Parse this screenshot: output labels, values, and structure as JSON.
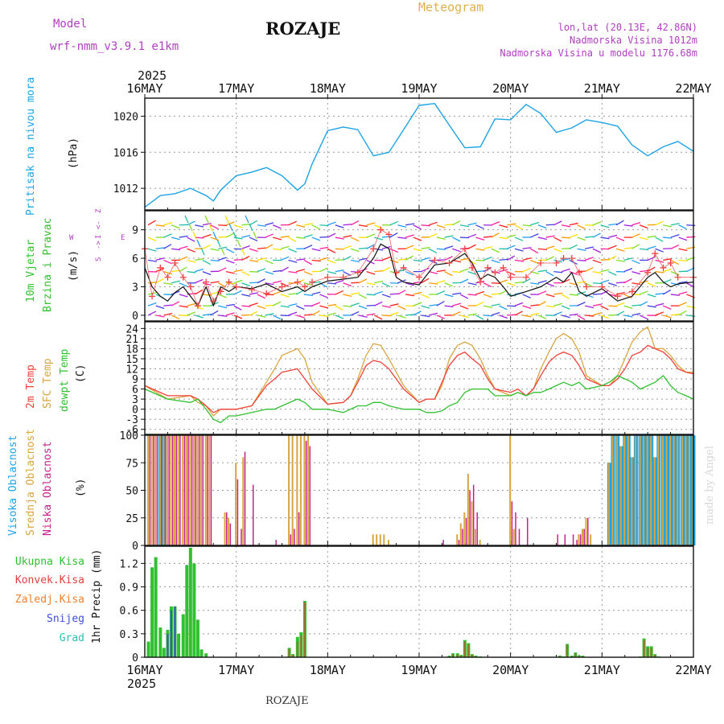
{
  "header": {
    "model_label": "Model",
    "model_name": "wrf-nmm_v3.9.1 e1km",
    "location_title": "ROZAJE",
    "product": "Meteogram",
    "coords": "lon,lat (20.13E, 42.86N)",
    "altitude": "Nadmorska Visina 1012m",
    "model_altitude": "Nadmorska Visina u modelu 1176.68m"
  },
  "footer": {
    "location": "ROZAJE",
    "credit": "made by Angel"
  },
  "time_axis": {
    "year": "2025",
    "labels": [
      "16MAY",
      "17MAY",
      "18MAY",
      "19MAY",
      "20MAY",
      "21MAY",
      "22MAY"
    ]
  },
  "colors": {
    "pressure": "#1ea4e6",
    "temp2m": "#f0403a",
    "sfc_temp": "#d8a640",
    "dewpt": "#30c030",
    "wind_label": "#30c030",
    "wind_axis": "#b040c0",
    "cloud_high": "#1ea4e6",
    "cloud_mid": "#d8a640",
    "cloud_low": "#c8208a",
    "precip_total": "#30c030",
    "precip_conv": "#e04040",
    "precip_frozen": "#f08030",
    "precip_snow": "#4050d8",
    "precip_hail": "#30c0b0"
  },
  "chart_data": [
    {
      "type": "line",
      "panel": "pressure",
      "ylabel": [
        "Pritisak na nivou mora",
        "(hPa)"
      ],
      "yticks": [
        1012,
        1016,
        1020
      ],
      "ylim": [
        1009.6,
        1022
      ],
      "x_days": [
        0,
        0.17,
        0.33,
        0.5,
        0.67,
        0.75,
        0.83,
        1.0,
        1.17,
        1.33,
        1.5,
        1.67,
        1.75,
        1.83,
        2.0,
        2.17,
        2.33,
        2.5,
        2.67,
        2.83,
        3.0,
        3.17,
        3.33,
        3.5,
        3.67,
        3.83,
        4.0,
        4.17,
        4.33,
        4.5,
        4.67,
        4.83,
        5.0,
        5.17,
        5.33,
        5.5,
        5.67,
        5.83,
        6.0
      ],
      "series": [
        {
          "values": [
            1009.9,
            1011.2,
            1011.4,
            1012.0,
            1011.2,
            1010.6,
            1011.8,
            1013.4,
            1013.8,
            1014.3,
            1013.4,
            1011.8,
            1012.5,
            1014.7,
            1018.4,
            1018.8,
            1018.5,
            1015.6,
            1016.0,
            1018.5,
            1021.2,
            1021.4,
            1019.0,
            1016.5,
            1016.6,
            1019.7,
            1019.6,
            1021.3,
            1020.3,
            1018.2,
            1018.7,
            1019.6,
            1019.3,
            1018.9,
            1016.8,
            1015.6,
            1016.6,
            1017.2,
            1016.1
          ]
        }
      ]
    },
    {
      "type": "line",
      "panel": "wind",
      "ylabel": [
        "10m Vjetar",
        "Brzina i Pravac",
        "(m/s)"
      ],
      "direction_key": [
        "Z",
        "<-",
        "I",
        "->",
        "E",
        "W",
        "S"
      ],
      "yticks": [
        0,
        3,
        6,
        9
      ],
      "ylim": [
        -0.6,
        11
      ],
      "x_days": [
        0,
        0.08,
        0.17,
        0.25,
        0.33,
        0.42,
        0.5,
        0.58,
        0.67,
        0.75,
        0.83,
        0.92,
        1.0,
        1.17,
        1.33,
        1.5,
        1.67,
        1.75,
        1.83,
        2.0,
        2.17,
        2.33,
        2.5,
        2.58,
        2.67,
        2.75,
        2.83,
        3.0,
        3.17,
        3.33,
        3.5,
        3.58,
        3.67,
        3.75,
        3.83,
        3.92,
        4.0,
        4.17,
        4.33,
        4.5,
        4.58,
        4.67,
        4.75,
        4.83,
        5.0,
        5.17,
        5.33,
        5.5,
        5.58,
        5.67,
        5.75,
        5.83,
        6.0
      ],
      "series": [
        {
          "values": [
            5.0,
            3.0,
            2.0,
            1.5,
            2.4,
            3.0,
            2.0,
            1.0,
            3.0,
            1.0,
            3.0,
            2.5,
            3.0,
            2.8,
            3.3,
            2.5,
            3.0,
            2.5,
            3.0,
            3.6,
            3.8,
            4.0,
            6.0,
            7.5,
            7.0,
            4.0,
            3.5,
            3.2,
            5.3,
            5.5,
            6.5,
            5.5,
            3.8,
            4.3,
            4.0,
            3.0,
            2.0,
            2.5,
            3.0,
            4.0,
            3.5,
            4.5,
            2.5,
            2.0,
            2.8,
            1.5,
            2.0,
            4.0,
            4.5,
            3.5,
            3.0,
            3.3,
            3.5
          ]
        },
        {
          "values": [
            7.0,
            2.0,
            5.0,
            4.0,
            5.5,
            4.0,
            3.0,
            1.0,
            3.5,
            1.5,
            2.5,
            3.5,
            3.0,
            2.7,
            2.3,
            3.0,
            3.5,
            3.0,
            3.5,
            4.0,
            4.0,
            4.5,
            7.0,
            9.0,
            8.5,
            4.5,
            5.0,
            4.0,
            5.8,
            5.5,
            7.0,
            5.0,
            3.5,
            5.0,
            4.5,
            5.0,
            4.0,
            4.0,
            5.5,
            5.5,
            6.0,
            6.0,
            4.5,
            3.0,
            3.0,
            2.0,
            2.5,
            4.5,
            6.5,
            5.0,
            5.5,
            4.0,
            4.0
          ]
        }
      ]
    },
    {
      "type": "line",
      "panel": "temperature",
      "ylabel": [
        "2m Temp",
        "SFC Temp",
        "dewpt Temp",
        "(C)"
      ],
      "yticks": [
        -6,
        -3,
        0,
        3,
        6,
        9,
        12,
        15,
        18,
        21,
        24
      ],
      "ylim": [
        -7.5,
        26
      ],
      "x_days": [
        0,
        0.25,
        0.5,
        0.58,
        0.67,
        0.75,
        0.83,
        0.92,
        1.0,
        1.17,
        1.33,
        1.42,
        1.5,
        1.67,
        1.75,
        1.83,
        2.0,
        2.17,
        2.25,
        2.33,
        2.42,
        2.5,
        2.58,
        2.67,
        2.83,
        3.0,
        3.08,
        3.17,
        3.25,
        3.33,
        3.42,
        3.5,
        3.58,
        3.67,
        3.75,
        3.83,
        4.0,
        4.08,
        4.17,
        4.25,
        4.33,
        4.42,
        4.5,
        4.58,
        4.67,
        4.75,
        4.83,
        5.0,
        5.08,
        5.17,
        5.25,
        5.33,
        5.42,
        5.5,
        5.58,
        5.67,
        5.75,
        5.83,
        5.92,
        6.0
      ],
      "series": [
        {
          "name": "2m Temp",
          "values": [
            7,
            4,
            4,
            3,
            1,
            -1,
            0,
            0,
            0,
            1,
            7,
            9,
            11,
            12,
            9,
            6,
            1.5,
            2,
            4,
            8,
            13,
            14.5,
            14,
            12,
            6,
            2,
            3,
            3,
            8,
            13,
            16,
            17,
            15,
            13,
            9,
            6,
            5,
            6,
            4,
            6,
            10,
            14,
            16,
            17,
            16,
            13,
            9,
            7,
            7,
            9,
            12,
            16,
            17,
            19,
            18,
            17,
            15,
            12,
            11,
            10.5
          ]
        },
        {
          "name": "SFC Temp",
          "values": [
            7,
            3,
            4,
            2,
            1,
            -2,
            0,
            0,
            0,
            1,
            8,
            12,
            16,
            18,
            15,
            8,
            1.5,
            2,
            4,
            9,
            16,
            19.5,
            19,
            15,
            7,
            2,
            3,
            3,
            7,
            15,
            19,
            20,
            19,
            15,
            10,
            6,
            4,
            5,
            4,
            6,
            12,
            17,
            21,
            22.5,
            21,
            17,
            10,
            7,
            7,
            10,
            15,
            20,
            23,
            24.5,
            18,
            18,
            16,
            13,
            11,
            11
          ]
        },
        {
          "name": "dewpt Temp",
          "values": [
            6,
            3,
            2,
            3,
            0,
            -3,
            -4,
            -2,
            -2,
            -1,
            0,
            0,
            1,
            3,
            2,
            0,
            0,
            -1,
            0,
            1,
            1,
            2,
            2,
            1,
            0,
            0,
            -1,
            -1,
            -0.5,
            1,
            2,
            5,
            6,
            6,
            6,
            4,
            4,
            5,
            4,
            5,
            5,
            6,
            7,
            8,
            7,
            8,
            6,
            7,
            8,
            10,
            9,
            8,
            6,
            7,
            8,
            10,
            7,
            5,
            4,
            3
          ]
        }
      ]
    },
    {
      "type": "bar",
      "panel": "clouds",
      "ylabel": [
        "Visoka Oblacnost",
        "Srednja Oblacnost",
        "Niska Oblacnost",
        "(%)"
      ],
      "yticks": [
        0,
        25,
        50,
        75,
        100
      ],
      "ylim": [
        0,
        100
      ],
      "x_days": [
        0.04,
        0.08,
        0.12,
        0.17,
        0.21,
        0.25,
        0.29,
        0.33,
        0.37,
        0.42,
        0.46,
        0.5,
        0.54,
        0.58,
        0.62,
        0.67,
        0.71,
        0.75,
        0.83,
        0.88,
        0.92,
        1.0,
        1.04,
        1.08,
        1.12,
        1.17,
        1.25,
        1.42,
        1.54,
        1.58,
        1.62,
        1.67,
        1.71,
        1.75,
        1.79,
        1.83,
        1.88,
        1.92,
        2.0,
        2.5,
        2.54,
        2.58,
        2.62,
        2.67,
        3.21,
        3.25,
        3.33,
        3.42,
        3.46,
        3.5,
        3.54,
        3.58,
        3.62,
        3.67,
        3.75,
        3.96,
        4.0,
        4.04,
        4.08,
        4.12,
        4.17,
        4.33,
        4.5,
        4.58,
        4.67,
        4.71,
        4.75,
        4.79,
        4.83,
        4.88,
        5.0,
        5.08,
        5.12,
        5.17,
        5.21,
        5.25,
        5.29,
        5.33,
        5.37,
        5.42,
        5.46,
        5.5,
        5.54,
        5.58,
        5.62,
        5.67,
        5.71,
        5.75,
        5.79,
        5.83,
        5.88,
        5.92,
        5.96,
        6.0
      ],
      "series": [
        {
          "name": "Visoka Oblacnost",
          "values": [
            0,
            0,
            0,
            100,
            100,
            0,
            0,
            0,
            0,
            0,
            0,
            0,
            0,
            0,
            0,
            0,
            0,
            0,
            0,
            0,
            0,
            0,
            0,
            0,
            0,
            0,
            0,
            0,
            0,
            0,
            0,
            0,
            0,
            0,
            0,
            0,
            0,
            0,
            0,
            0,
            0,
            0,
            0,
            0,
            0,
            0,
            0,
            0,
            0,
            0,
            0,
            0,
            0,
            0,
            0,
            0,
            0,
            0,
            0,
            0,
            0,
            0,
            0,
            0,
            0,
            0,
            0,
            0,
            0,
            0,
            0,
            75,
            100,
            100,
            90,
            100,
            100,
            80,
            100,
            100,
            100,
            100,
            100,
            80,
            100,
            100,
            100,
            100,
            100,
            100,
            100,
            100,
            100,
            100
          ]
        },
        {
          "name": "Srednja Oblacnost",
          "values": [
            100,
            100,
            100,
            100,
            100,
            100,
            100,
            100,
            100,
            100,
            100,
            100,
            100,
            100,
            100,
            100,
            100,
            0,
            0,
            30,
            25,
            75,
            0,
            80,
            0,
            0,
            0,
            0,
            0,
            100,
            100,
            100,
            100,
            100,
            100,
            0,
            0,
            0,
            0,
            10,
            10,
            10,
            10,
            5,
            0,
            0,
            0,
            10,
            20,
            30,
            65,
            40,
            15,
            5,
            0,
            0,
            100,
            15,
            0,
            0,
            0,
            0,
            0,
            0,
            0,
            0,
            10,
            15,
            25,
            10,
            0,
            75,
            100,
            100,
            90,
            100,
            100,
            80,
            100,
            100,
            100,
            100,
            100,
            80,
            100,
            100,
            100,
            100,
            100,
            100,
            100,
            100,
            100,
            100
          ]
        },
        {
          "name": "Niska Oblacnost",
          "values": [
            100,
            100,
            100,
            100,
            100,
            100,
            100,
            100,
            100,
            100,
            100,
            100,
            100,
            100,
            100,
            100,
            100,
            0,
            0,
            30,
            20,
            60,
            15,
            85,
            0,
            55,
            0,
            5,
            0,
            10,
            15,
            30,
            0,
            95,
            90,
            0,
            0,
            0,
            0,
            0,
            0,
            0,
            0,
            0,
            0,
            5,
            0,
            5,
            15,
            25,
            50,
            55,
            30,
            0,
            0,
            0,
            40,
            30,
            15,
            0,
            25,
            0,
            10,
            10,
            10,
            5,
            10,
            15,
            25,
            0,
            0,
            0,
            0,
            0,
            0,
            0,
            0,
            0,
            0,
            0,
            0,
            0,
            0,
            0,
            0,
            0,
            0,
            0,
            0,
            0,
            0,
            0,
            0,
            0
          ]
        }
      ]
    },
    {
      "type": "bar",
      "panel": "precipitation",
      "ylabel": [
        "1hr Precip (mm)"
      ],
      "legend": [
        "Ukupna Kisa",
        "Konvek.Kisa",
        "Zaledj.Kisa",
        "Snijeg",
        "Grad"
      ],
      "yticks": [
        0,
        0.3,
        0.6,
        0.9,
        1.2
      ],
      "ylim": [
        0,
        1.42
      ],
      "x_days": [
        0.04,
        0.08,
        0.12,
        0.17,
        0.21,
        0.25,
        0.29,
        0.33,
        0.37,
        0.42,
        0.46,
        0.5,
        0.54,
        0.58,
        0.62,
        0.67,
        1.58,
        1.62,
        1.67,
        1.71,
        1.75,
        3.33,
        3.37,
        3.42,
        3.46,
        3.5,
        3.54,
        3.58,
        3.62,
        3.67,
        4.54,
        4.58,
        4.62,
        4.67,
        4.71,
        4.75,
        4.79,
        5.42,
        5.46,
        5.5,
        5.54,
        5.58,
        5.62,
        5.67
      ],
      "series": [
        {
          "name": "Ukupna Kisa",
          "values": [
            0.2,
            1.15,
            1.28,
            0.38,
            0.12,
            0.35,
            0.65,
            0.65,
            0.3,
            0.55,
            1.18,
            1.4,
            1.2,
            0.48,
            0.1,
            0.05,
            0.12,
            0.04,
            0.26,
            0.32,
            0.72,
            0.02,
            0.05,
            0.05,
            0.03,
            0.22,
            0.18,
            0.04,
            0.02,
            0.01,
            0.02,
            0.01,
            0.17,
            0.02,
            0.06,
            0.02,
            0.02,
            0.01,
            0.24,
            0.14,
            0.14,
            0.04,
            0.01,
            0.0
          ]
        },
        {
          "name": "Konvek.Kisa",
          "values": [
            0,
            0,
            0,
            0,
            0,
            0,
            0,
            0,
            0,
            0,
            0,
            0,
            0,
            0,
            0,
            0,
            0.1,
            0.03,
            0.2,
            0.28,
            0.7,
            0.01,
            0.04,
            0.04,
            0.02,
            0.2,
            0.16,
            0.03,
            0.01,
            0,
            0.01,
            0,
            0.16,
            0.01,
            0.05,
            0.01,
            0.01,
            0,
            0.22,
            0.12,
            0.12,
            0.03,
            0,
            0
          ]
        },
        {
          "name": "Snijeg",
          "values": [
            0,
            0,
            0,
            0,
            0,
            0.3,
            0.6,
            0.65,
            0,
            0,
            0,
            0,
            0,
            0,
            0,
            0,
            0,
            0,
            0,
            0,
            0,
            0,
            0,
            0,
            0,
            0,
            0,
            0,
            0,
            0,
            0,
            0,
            0,
            0,
            0,
            0,
            0,
            0,
            0,
            0,
            0,
            0,
            0,
            0
          ]
        }
      ]
    }
  ]
}
